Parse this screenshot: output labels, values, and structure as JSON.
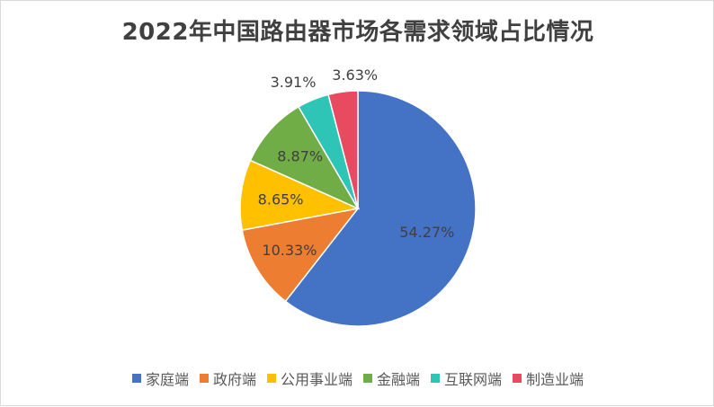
{
  "chart_data": {
    "type": "pie",
    "title": "2022年中国路由器市场各需求领域占比情况",
    "categories": [
      "家庭端",
      "政府端",
      "公用事业端",
      "金融端",
      "互联网端",
      "制造业端"
    ],
    "values": [
      54.27,
      10.33,
      8.65,
      8.87,
      3.91,
      3.63
    ],
    "labels": [
      "54.27%",
      "10.33%",
      "8.65%",
      "8.87%",
      "3.91%",
      "3.63%"
    ],
    "colors": [
      "#4472c4",
      "#ed7d31",
      "#ffc000",
      "#70ad47",
      "#2ec4b6",
      "#e84a5f"
    ],
    "legend_position": "bottom"
  }
}
